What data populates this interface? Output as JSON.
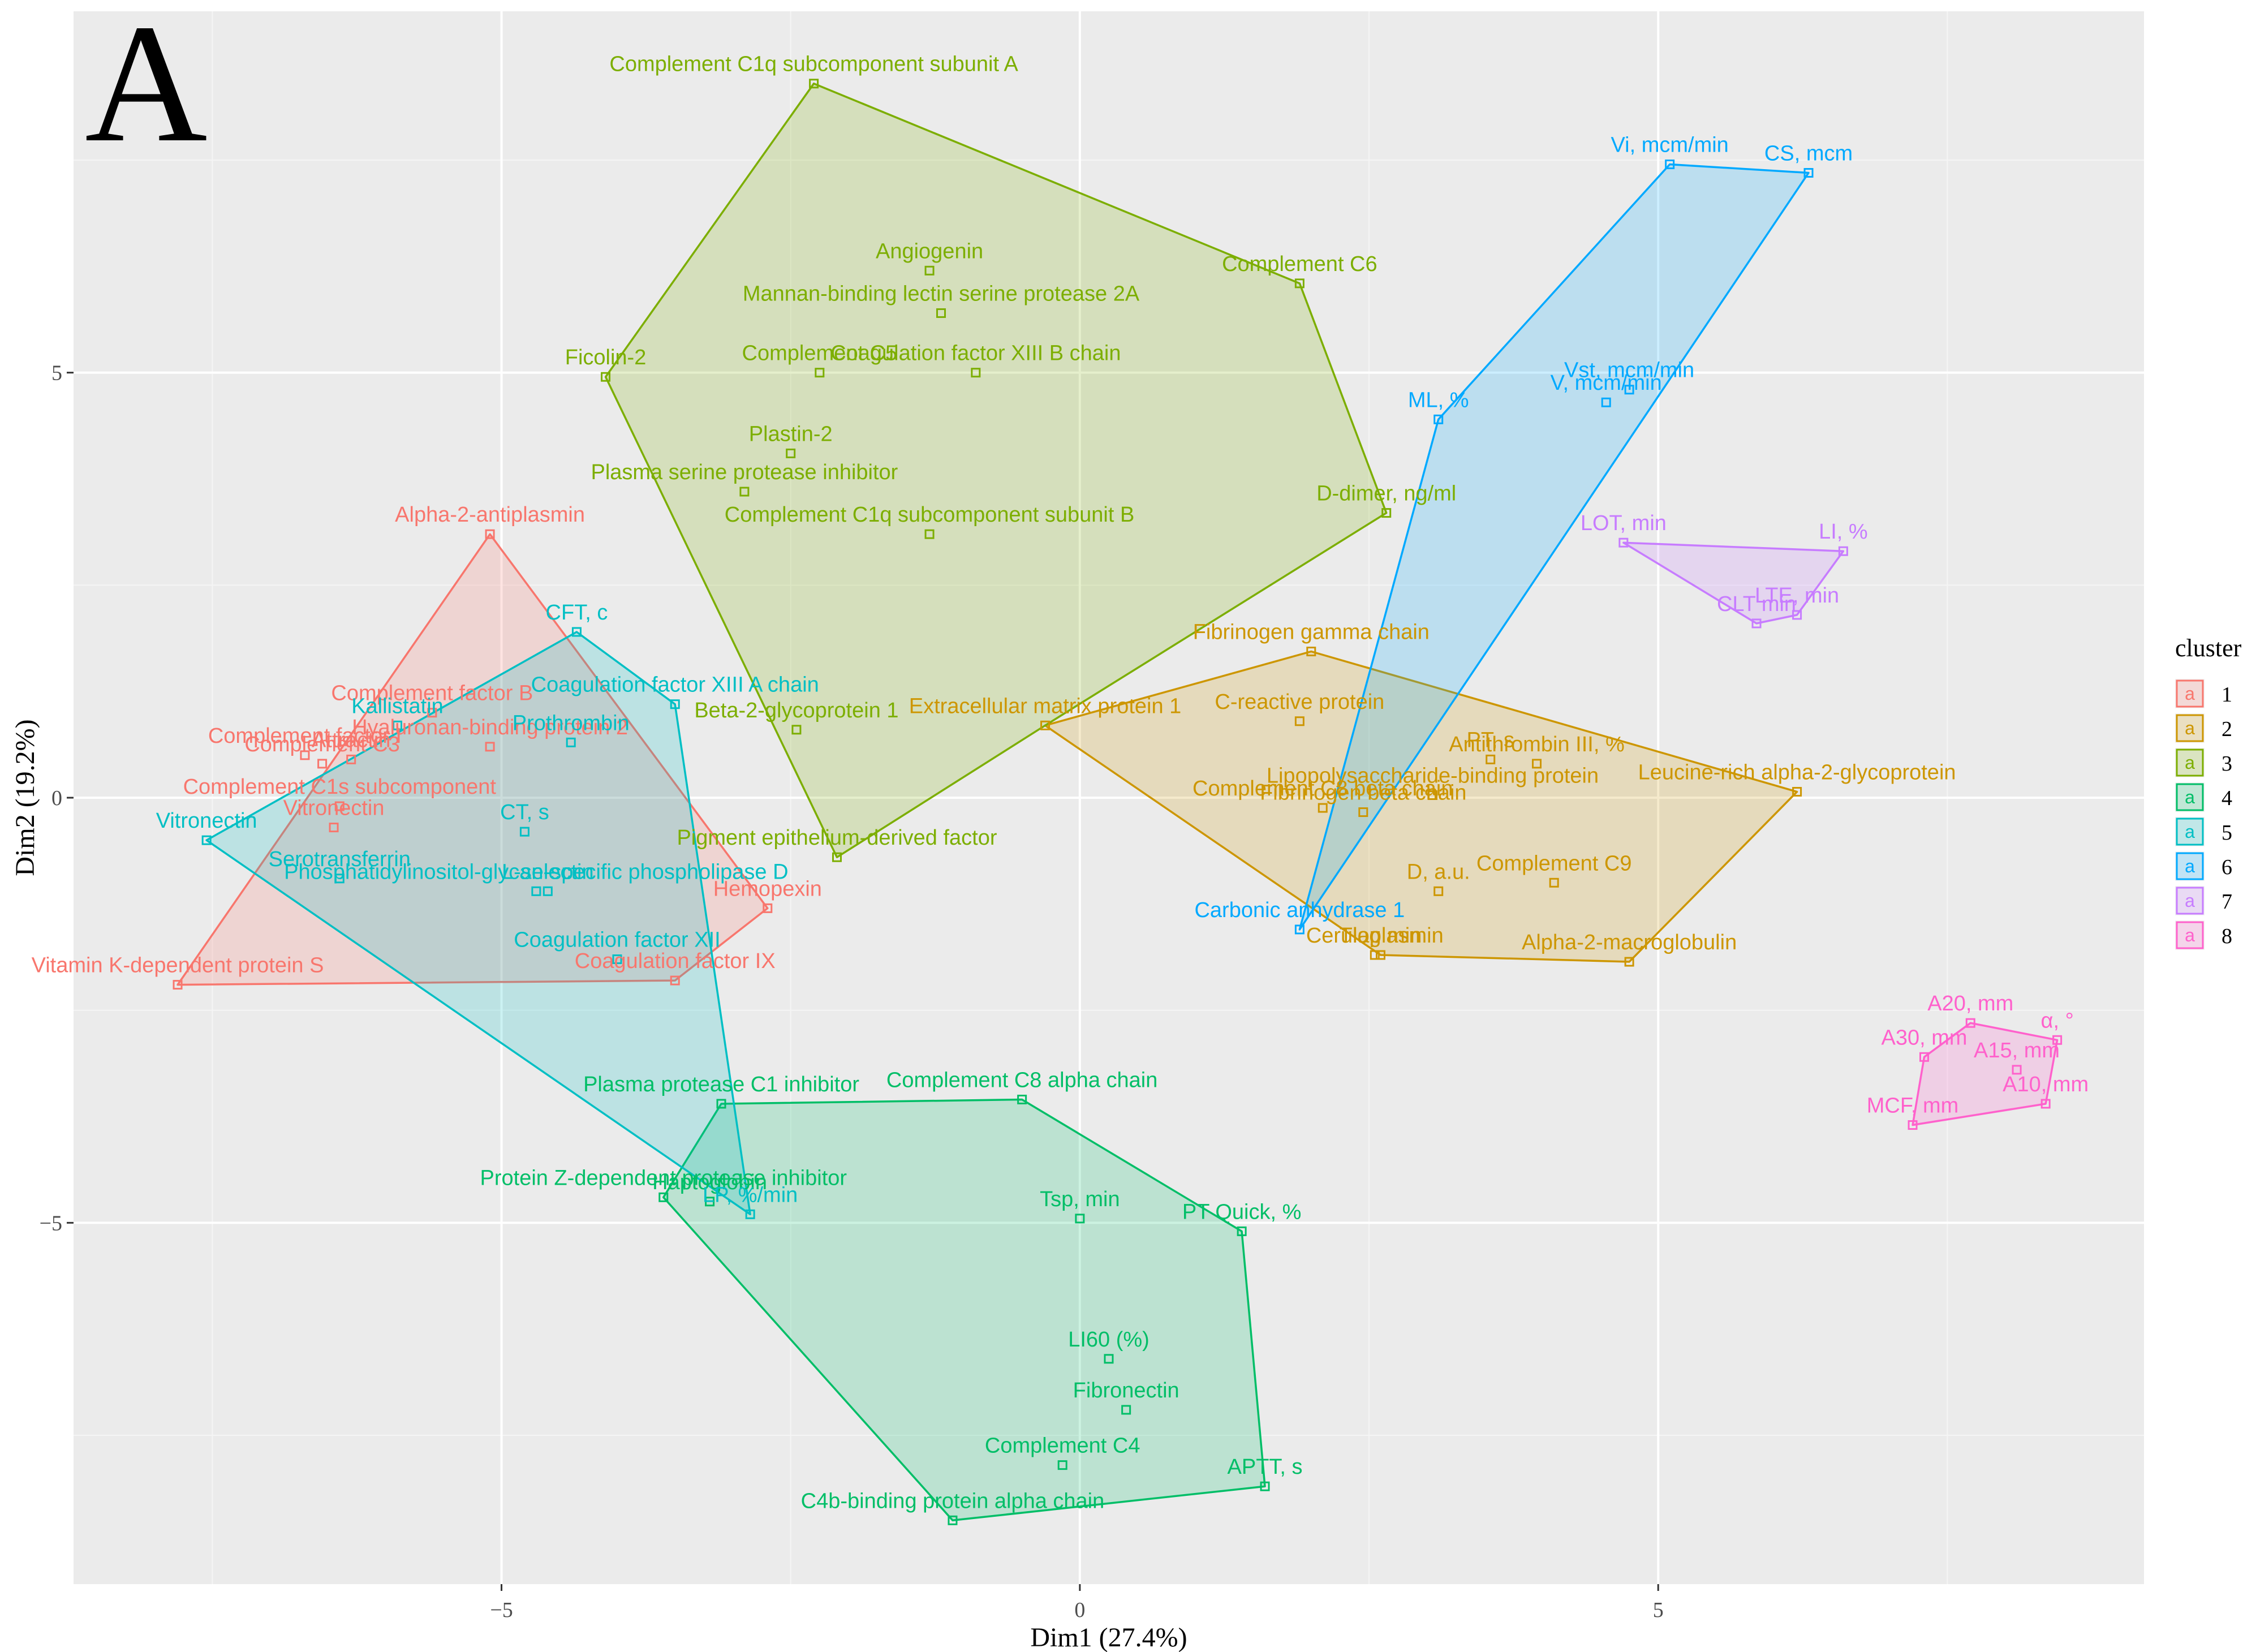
{
  "panel_tag": "A",
  "chart_data": {
    "type": "scatter",
    "xlabel": "Dim1 (27.4%)",
    "ylabel": "Dim2 (19.2%)",
    "xlim": [
      -8.7,
      9.2
    ],
    "ylim": [
      -9.25,
      9.25
    ],
    "x_ticks": [
      -5,
      0,
      5
    ],
    "x_tick_labels": [
      "−5",
      "0",
      "5"
    ],
    "y_ticks": [
      -5,
      0,
      5
    ],
    "y_tick_labels": [
      "−5",
      "0",
      "5"
    ],
    "grid": true,
    "panel_background": "#ebebeb",
    "legend": {
      "title": "cluster",
      "position": "right",
      "key_glyph": "a",
      "entries": [
        "1",
        "2",
        "3",
        "4",
        "5",
        "6",
        "7",
        "8"
      ]
    },
    "series": [
      {
        "cluster": "1",
        "color": "#F8766D",
        "hull": [
          [
            -5.1,
            3.1
          ],
          [
            -2.7,
            -1.3
          ],
          [
            -3.5,
            -2.15
          ],
          [
            -7.8,
            -2.2
          ]
        ],
        "points": [
          {
            "label": "Alpha-2-antiplasmin",
            "x": -5.1,
            "y": 3.1
          },
          {
            "label": "Complement factor B",
            "x": -5.6,
            "y": 1.0
          },
          {
            "label": "Complement factor I",
            "x": -6.7,
            "y": 0.5
          },
          {
            "label": "Complement C3",
            "x": -6.55,
            "y": 0.4
          },
          {
            "label": "Attractin",
            "x": -6.3,
            "y": 0.45
          },
          {
            "label": "Hyaluronan-binding protein 2",
            "x": -5.1,
            "y": 0.6
          },
          {
            "label": "Complement C1s subcomponent",
            "x": -6.4,
            "y": -0.1
          },
          {
            "label": "Vitronectin",
            "x": -6.45,
            "y": -0.35
          },
          {
            "label": "Hemopexin",
            "x": -2.7,
            "y": -1.3
          },
          {
            "label": "Coagulation factor IX",
            "x": -3.5,
            "y": -2.15
          },
          {
            "label": "Vitamin K-dependent protein S",
            "x": -7.8,
            "y": -2.2
          }
        ]
      },
      {
        "cluster": "2",
        "color": "#CD9600",
        "hull": [
          [
            2.0,
            1.72
          ],
          [
            6.2,
            0.07
          ],
          [
            4.75,
            -1.93
          ],
          [
            2.6,
            -1.85
          ],
          [
            -0.3,
            0.85
          ]
        ],
        "points": [
          {
            "label": "Fibrinogen gamma chain",
            "x": 2.0,
            "y": 1.72
          },
          {
            "label": "Extracellular matrix protein 1",
            "x": -0.3,
            "y": 0.85
          },
          {
            "label": "C-reactive protein",
            "x": 1.9,
            "y": 0.9
          },
          {
            "label": "PT, s",
            "x": 3.55,
            "y": 0.45
          },
          {
            "label": "Antithrombin III, %",
            "x": 3.95,
            "y": 0.4
          },
          {
            "label": "Lipopolysaccharide-binding protein",
            "x": 3.05,
            "y": 0.03
          },
          {
            "label": "Leucine-rich alpha-2-glycoprotein",
            "x": 6.2,
            "y": 0.07
          },
          {
            "label": "Complement C8 beta chain",
            "x": 2.1,
            "y": -0.12
          },
          {
            "label": "Fibrinogen beta chain",
            "x": 2.45,
            "y": -0.17
          },
          {
            "label": "D, a.u.",
            "x": 3.1,
            "y": -1.1
          },
          {
            "label": "Complement C9",
            "x": 4.1,
            "y": -1.0
          },
          {
            "label": "Tlag min",
            "x": 2.6,
            "y": -1.85
          },
          {
            "label": "Ceruloplasmin",
            "x": 2.55,
            "y": -1.85
          },
          {
            "label": "Alpha-2-macroglobulin",
            "x": 4.75,
            "y": -1.93
          }
        ]
      },
      {
        "cluster": "3",
        "color": "#7CAE00",
        "hull": [
          [
            -2.3,
            8.4
          ],
          [
            1.9,
            6.05
          ],
          [
            2.65,
            3.35
          ],
          [
            -0.3,
            0.85
          ],
          [
            -2.1,
            -0.7
          ],
          [
            -4.1,
            4.95
          ]
        ],
        "points": [
          {
            "label": "Complement C1q subcomponent subunit A",
            "x": -2.3,
            "y": 8.4
          },
          {
            "label": "Angiogenin",
            "x": -1.3,
            "y": 6.2
          },
          {
            "label": "Complement C6",
            "x": 1.9,
            "y": 6.05
          },
          {
            "label": "Mannan-binding lectin serine protease 2A",
            "x": -1.2,
            "y": 5.7
          },
          {
            "label": "Complement C5",
            "x": -2.25,
            "y": 5.0
          },
          {
            "label": "Coagulation factor XIII B chain",
            "x": -0.9,
            "y": 5.0
          },
          {
            "label": "Ficolin-2",
            "x": -4.1,
            "y": 4.95
          },
          {
            "label": "Plastin-2",
            "x": -2.5,
            "y": 4.05
          },
          {
            "label": "Plasma serine protease inhibitor",
            "x": -2.9,
            "y": 3.6
          },
          {
            "label": "D-dimer, ng/ml",
            "x": 2.65,
            "y": 3.35
          },
          {
            "label": "Complement C1q subcomponent subunit B",
            "x": -1.3,
            "y": 3.1
          },
          {
            "label": "Beta-2-glycoprotein 1",
            "x": -2.45,
            "y": 0.8
          },
          {
            "label": "Pigment epithelium-derived factor",
            "x": -2.1,
            "y": -0.7
          }
        ]
      },
      {
        "cluster": "4",
        "color": "#00BE67",
        "hull": [
          [
            -3.1,
            -3.6
          ],
          [
            -0.5,
            -3.55
          ],
          [
            1.4,
            -5.1
          ],
          [
            1.6,
            -8.1
          ],
          [
            -1.1,
            -8.5
          ],
          [
            -3.6,
            -4.7
          ]
        ],
        "points": [
          {
            "label": "Plasma protease C1 inhibitor",
            "x": -3.1,
            "y": -3.6
          },
          {
            "label": "Complement C8 alpha chain",
            "x": -0.5,
            "y": -3.55
          },
          {
            "label": "Haptoglobin",
            "x": -3.2,
            "y": -4.75
          },
          {
            "label": "Protein Z-dependent protease inhibitor",
            "x": -3.6,
            "y": -4.7
          },
          {
            "label": "Tsp, min",
            "x": 0.0,
            "y": -4.95
          },
          {
            "label": "PT Quick, %",
            "x": 1.4,
            "y": -5.1
          },
          {
            "label": "LI60 (%)",
            "x": 0.25,
            "y": -6.6
          },
          {
            "label": "Fibronectin",
            "x": 0.4,
            "y": -7.2
          },
          {
            "label": "Complement C4",
            "x": -0.15,
            "y": -7.85
          },
          {
            "label": "APTT, s",
            "x": 1.6,
            "y": -8.1
          },
          {
            "label": "C4b-binding protein alpha chain",
            "x": -1.1,
            "y": -8.5
          }
        ]
      },
      {
        "cluster": "5",
        "color": "#00BFC4",
        "hull": [
          [
            -4.35,
            1.95
          ],
          [
            -3.5,
            1.1
          ],
          [
            -2.85,
            -4.9
          ],
          [
            -7.55,
            -0.5
          ]
        ],
        "points": [
          {
            "label": "CFT, c",
            "x": -4.35,
            "y": 1.95
          },
          {
            "label": "Coagulation factor XIII A chain",
            "x": -3.5,
            "y": 1.1
          },
          {
            "label": "Prothrombin",
            "x": -4.4,
            "y": 0.65
          },
          {
            "label": "Kallistatin",
            "x": -5.9,
            "y": 0.85
          },
          {
            "label": "CT, s",
            "x": -4.8,
            "y": -0.4
          },
          {
            "label": "Phosphatidylinositol-glycan-specific phospholipase D",
            "x": -4.7,
            "y": -1.1
          },
          {
            "label": "Serotransferrin",
            "x": -6.4,
            "y": -0.95
          },
          {
            "label": "L-selectin",
            "x": -4.6,
            "y": -1.1
          },
          {
            "label": "Coagulation factor XII",
            "x": -4.0,
            "y": -1.9
          },
          {
            "label": "LP, %/min",
            "x": -2.85,
            "y": -4.9
          },
          {
            "label": "Vitronectin",
            "x": -7.55,
            "y": -0.5
          }
        ]
      },
      {
        "cluster": "6",
        "color": "#00A9FF",
        "hull": [
          [
            5.1,
            7.45
          ],
          [
            6.3,
            7.35
          ],
          [
            1.9,
            -1.55
          ],
          [
            3.1,
            4.45
          ]
        ],
        "points": [
          {
            "label": "Vi, mcm/min",
            "x": 5.1,
            "y": 7.45
          },
          {
            "label": "CS, mcm",
            "x": 6.3,
            "y": 7.35
          },
          {
            "label": "Vst, mcm/min",
            "x": 4.75,
            "y": 4.8
          },
          {
            "label": "V, mcm/min",
            "x": 4.55,
            "y": 4.65
          },
          {
            "label": "ML, %",
            "x": 3.1,
            "y": 4.45
          },
          {
            "label": "Carbonic anhydrase 1",
            "x": 1.9,
            "y": -1.55
          }
        ]
      },
      {
        "cluster": "7",
        "color": "#C77CFF",
        "hull": [
          [
            4.7,
            3.0
          ],
          [
            6.6,
            2.9
          ],
          [
            6.2,
            2.15
          ],
          [
            5.85,
            2.05
          ]
        ],
        "points": [
          {
            "label": "LOT, min",
            "x": 4.7,
            "y": 3.0
          },
          {
            "label": "LI, %",
            "x": 6.6,
            "y": 2.9
          },
          {
            "label": "LTE, min",
            "x": 6.2,
            "y": 2.15
          },
          {
            "label": "CLT min",
            "x": 5.85,
            "y": 2.05
          }
        ]
      },
      {
        "cluster": "8",
        "color": "#FF61CC",
        "hull": [
          [
            7.7,
            -2.65
          ],
          [
            8.45,
            -2.85
          ],
          [
            8.35,
            -3.6
          ],
          [
            7.2,
            -3.85
          ],
          [
            7.3,
            -3.05
          ]
        ],
        "points": [
          {
            "label": "A20, mm",
            "x": 7.7,
            "y": -2.65
          },
          {
            "label": "α, °",
            "x": 8.45,
            "y": -2.85
          },
          {
            "label": "A30, mm",
            "x": 7.3,
            "y": -3.05
          },
          {
            "label": "A15, mm",
            "x": 8.1,
            "y": -3.2
          },
          {
            "label": "A10, mm",
            "x": 8.35,
            "y": -3.6
          },
          {
            "label": "MCF, mm",
            "x": 7.2,
            "y": -3.85
          }
        ]
      }
    ]
  }
}
